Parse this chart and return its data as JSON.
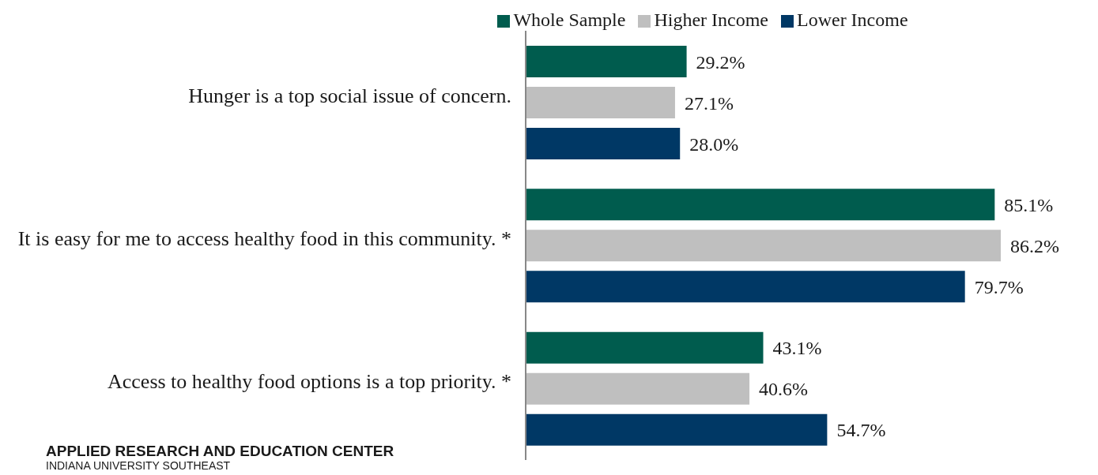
{
  "chart_data": {
    "type": "bar",
    "orientation": "horizontal",
    "categories": [
      "Hunger is a top social issue of concern.",
      "It is easy for me to access healthy food in this community. *",
      "Access to healthy food options is a top priority. *"
    ],
    "series": [
      {
        "name": "Whole Sample",
        "color": "#005c4e",
        "values": [
          29.2,
          85.1,
          43.1
        ],
        "value_labels": [
          "29.2%",
          "85.1%",
          "43.1%"
        ]
      },
      {
        "name": "Higher Income",
        "color": "#bfbfbf",
        "values": [
          27.1,
          86.2,
          40.6
        ],
        "value_labels": [
          "27.1%",
          "86.2%",
          "40.6%"
        ]
      },
      {
        "name": "Lower Income",
        "color": "#003865",
        "values": [
          28.0,
          79.7,
          54.7
        ],
        "value_labels": [
          "28.0%",
          "79.7%",
          "54.7%"
        ]
      }
    ],
    "legend": "top",
    "grid": false,
    "annotations": [
      "APPLIED RESEARCH AND EDUCATION CENTER",
      "INDIANA UNIVERSITY SOUTHEAST"
    ]
  }
}
